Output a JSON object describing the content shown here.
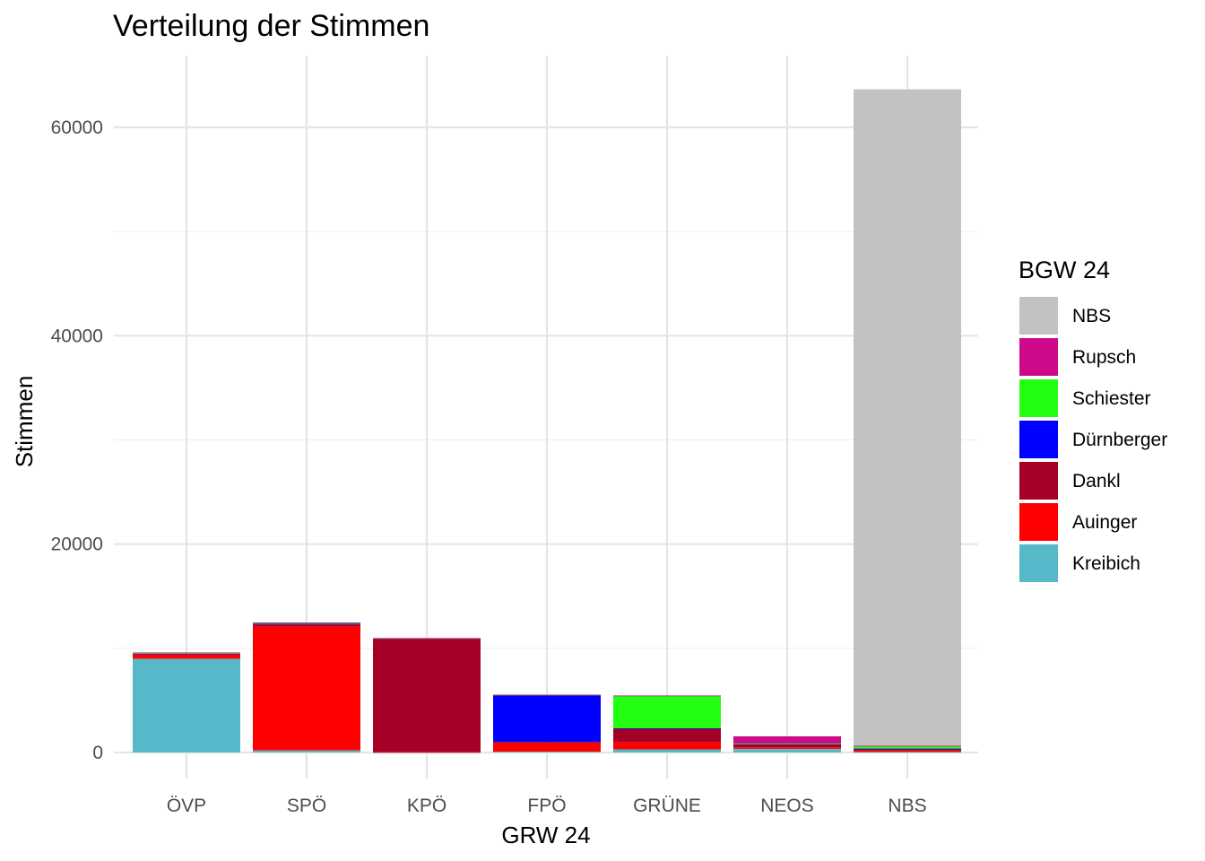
{
  "chart_data": {
    "type": "bar",
    "stacked": true,
    "title": "Verteilung der Stimmen",
    "xlabel": "GRW 24",
    "ylabel": "Stimmen",
    "ylim": [
      0,
      65000
    ],
    "yticks": [
      0,
      20000,
      40000,
      60000
    ],
    "grid": true,
    "categories": [
      "ÖVP",
      "SPÖ",
      "KPÖ",
      "FPÖ",
      "GRÜNE",
      "NEOS",
      "NBS"
    ],
    "legend": {
      "title": "BGW 24",
      "position": "right"
    },
    "series": [
      {
        "name": "NBS",
        "color": "#c2c2c2",
        "values": [
          0,
          0,
          0,
          0,
          0,
          0,
          63000
        ]
      },
      {
        "name": "Rupsch",
        "color": "#cc0a8a",
        "values": [
          60,
          60,
          10,
          20,
          50,
          700,
          20
        ]
      },
      {
        "name": "Schiester",
        "color": "#22ff12",
        "values": [
          30,
          20,
          10,
          20,
          3100,
          30,
          250
        ]
      },
      {
        "name": "Dürnberger",
        "color": "#0000ff",
        "values": [
          50,
          100,
          10,
          4500,
          20,
          20,
          30
        ]
      },
      {
        "name": "Dankl",
        "color": "#a50026",
        "values": [
          60,
          200,
          10900,
          30,
          1300,
          300,
          150
        ]
      },
      {
        "name": "Auinger",
        "color": "#ff0000",
        "values": [
          400,
          11900,
          30,
          900,
          700,
          150,
          150
        ]
      },
      {
        "name": "Kreibich",
        "color": "#56b8c8",
        "values": [
          9000,
          200,
          20,
          80,
          300,
          350,
          50
        ]
      }
    ]
  }
}
